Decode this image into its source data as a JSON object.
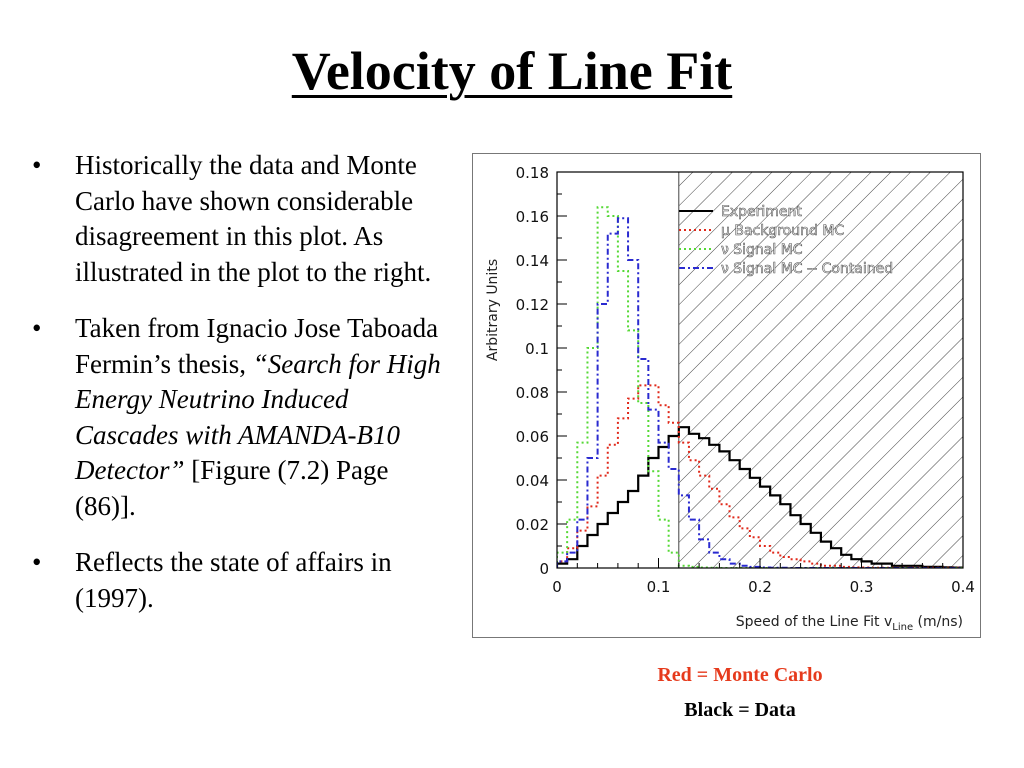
{
  "slide": {
    "title": "Velocity of Line Fit",
    "bullets": [
      {
        "text": "Historically the data and Monte Carlo have shown considerable disagreement in this plot. As illustrated in the plot to the right."
      },
      {
        "pre": "Taken from Ignacio Jose Taboada Fermin’s thesis, ",
        "italic": "“Search for High Energy Neutrino Induced Cascades with AMANDA-B10 Detector”",
        "post": " [Figure (7.2) Page (86)]."
      },
      {
        "text": "Reflects the state of affairs in (1997)."
      }
    ],
    "bullet_glyph": "•",
    "captions": {
      "red": "Red = Monte Carlo",
      "black": "Black = Data"
    },
    "caption_colors": {
      "red": "#e63a1c",
      "black": "#000000"
    }
  },
  "chart_data": {
    "type": "line",
    "title": "",
    "xlabel": "Speed of the Line Fit v",
    "xlabel_subscript": "Line",
    "xlabel_unit": " (m/ns)",
    "ylabel": "Arbitrary Units",
    "xlim": [
      0,
      0.4
    ],
    "ylim": [
      0,
      0.18
    ],
    "x_ticks": [
      0,
      0.1,
      0.2,
      0.3,
      0.4
    ],
    "x_tick_labels": [
      "0",
      "0.1",
      "0.2",
      "0.3",
      "0.4"
    ],
    "y_ticks": [
      0,
      0.02,
      0.04,
      0.06,
      0.08,
      0.1,
      0.12,
      0.14,
      0.16,
      0.18
    ],
    "y_tick_labels": [
      "0",
      "0.02",
      "0.04",
      "0.06",
      "0.08",
      "0.1",
      "0.12",
      "0.14",
      "0.16",
      "0.18"
    ],
    "hatched_region_x": [
      0.12,
      0.4
    ],
    "legend_position": "top-right",
    "bin_edges": [
      0,
      0.01,
      0.02,
      0.03,
      0.04,
      0.05,
      0.06,
      0.07,
      0.08,
      0.09,
      0.1,
      0.11,
      0.12,
      0.13,
      0.14,
      0.15,
      0.16,
      0.17,
      0.18,
      0.19,
      0.2,
      0.21,
      0.22,
      0.23,
      0.24,
      0.25,
      0.26,
      0.27,
      0.28,
      0.29,
      0.3,
      0.31,
      0.32,
      0.33,
      0.34,
      0.35,
      0.36,
      0.37,
      0.38,
      0.39,
      0.4
    ],
    "series": [
      {
        "name": "Experiment",
        "color": "#000000",
        "dash": "solid",
        "values": [
          0.002,
          0.004,
          0.01,
          0.015,
          0.02,
          0.025,
          0.03,
          0.035,
          0.042,
          0.05,
          0.055,
          0.06,
          0.064,
          0.061,
          0.059,
          0.056,
          0.053,
          0.049,
          0.045,
          0.041,
          0.037,
          0.033,
          0.029,
          0.024,
          0.02,
          0.016,
          0.012,
          0.009,
          0.006,
          0.004,
          0.003,
          0.002,
          0.002,
          0.001,
          0.001,
          0.001,
          0.0005,
          0.0005,
          0.0003,
          0.0002
        ]
      },
      {
        "name": "μ Background MC",
        "color": "#e0281a",
        "dash": "dotted",
        "values": [
          0.003,
          0.009,
          0.017,
          0.028,
          0.042,
          0.056,
          0.068,
          0.077,
          0.083,
          0.083,
          0.074,
          0.066,
          0.057,
          0.049,
          0.042,
          0.036,
          0.029,
          0.023,
          0.018,
          0.014,
          0.01,
          0.007,
          0.005,
          0.004,
          0.003,
          0.002,
          0.001,
          0.001,
          0.0005,
          0.0003,
          0.0002,
          0.0001,
          0.0001,
          0.0001,
          0.0001,
          0.0001,
          0.0001,
          0.0001,
          0.0001,
          0.0001
        ]
      },
      {
        "name": "ν Signal MC",
        "color": "#55d835",
        "dash": "dotted",
        "values": [
          0.007,
          0.022,
          0.057,
          0.1,
          0.164,
          0.16,
          0.135,
          0.108,
          0.075,
          0.044,
          0.022,
          0.007,
          0.001,
          0.0005,
          0.0002,
          0.0001,
          0,
          0,
          0,
          0,
          0,
          0,
          0,
          0,
          0,
          0,
          0,
          0,
          0,
          0,
          0,
          0,
          0,
          0,
          0,
          0,
          0,
          0,
          0,
          0
        ]
      },
      {
        "name": "ν Signal MC -- Contained",
        "color": "#2a2ad0",
        "dash": "dashdot",
        "values": [
          0.003,
          0.007,
          0.022,
          0.05,
          0.12,
          0.152,
          0.159,
          0.14,
          0.095,
          0.072,
          0.057,
          0.045,
          0.033,
          0.022,
          0.013,
          0.007,
          0.004,
          0.002,
          0.001,
          0.0005,
          0.0002,
          0.0001,
          0.0001,
          0,
          0,
          0,
          0,
          0,
          0,
          0,
          0,
          0,
          0,
          0,
          0,
          0,
          0,
          0,
          0,
          0
        ]
      }
    ]
  }
}
